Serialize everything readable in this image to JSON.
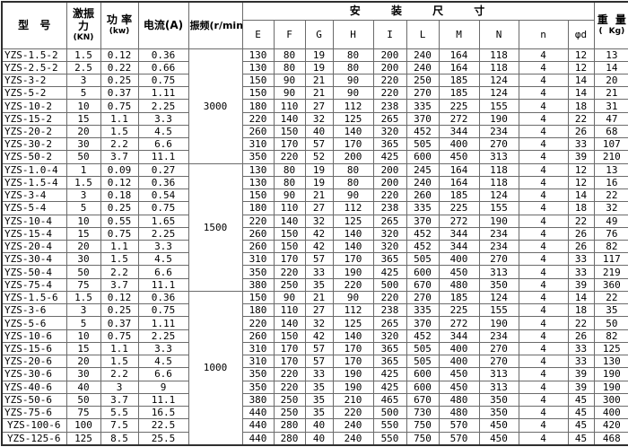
{
  "chart_data": {
    "type": "table",
    "headers": {
      "model": "型 号",
      "exciting_force_lines": [
        "激振",
        "力"
      ],
      "exciting_force_unit": "(KN)",
      "power": "功 率",
      "power_unit": "(kw)",
      "current": "电流(A)",
      "frequency": "振频(r/min)",
      "mounting_dimensions": "安 装 尺 寸",
      "dimension_columns": [
        "E",
        "F",
        "G",
        "H",
        "I",
        "L",
        "M",
        "N",
        "n",
        "φd"
      ],
      "weight": "重 量",
      "weight_unit": "( Kg)"
    },
    "groups": [
      {
        "frequency": "3000",
        "rows": [
          {
            "model": "YZS-1.5-2",
            "force": "1.5",
            "power": "0.12",
            "current": "0.36",
            "dims": [
              "130",
              "80",
              "19",
              "80",
              "200",
              "240",
              "164",
              "118",
              "4",
              "12"
            ],
            "weight": "13"
          },
          {
            "model": "YZS-2.5-2",
            "force": "2.5",
            "power": "0.22",
            "current": "0.66",
            "dims": [
              "130",
              "80",
              "19",
              "80",
              "200",
              "240",
              "164",
              "118",
              "4",
              "12"
            ],
            "weight": "14"
          },
          {
            "model": "YZS-3-2",
            "force": "3",
            "power": "0.25",
            "current": "0.75",
            "dims": [
              "150",
              "90",
              "21",
              "90",
              "220",
              "250",
              "185",
              "124",
              "4",
              "14"
            ],
            "weight": "20"
          },
          {
            "model": "YZS-5-2",
            "force": "5",
            "power": "0.37",
            "current": "1.11",
            "dims": [
              "150",
              "90",
              "21",
              "90",
              "220",
              "270",
              "185",
              "124",
              "4",
              "14"
            ],
            "weight": "21"
          },
          {
            "model": "YZS-10-2",
            "force": "10",
            "power": "0.75",
            "current": "2.25",
            "dims": [
              "180",
              "110",
              "27",
              "112",
              "238",
              "335",
              "225",
              "155",
              "4",
              "18"
            ],
            "weight": "31"
          },
          {
            "model": "YZS-15-2",
            "force": "15",
            "power": "1.1",
            "current": "3.3",
            "dims": [
              "220",
              "140",
              "32",
              "125",
              "265",
              "370",
              "272",
              "190",
              "4",
              "22"
            ],
            "weight": "47"
          },
          {
            "model": "YZS-20-2",
            "force": "20",
            "power": "1.5",
            "current": "4.5",
            "dims": [
              "260",
              "150",
              "40",
              "140",
              "320",
              "452",
              "344",
              "234",
              "4",
              "26"
            ],
            "weight": "68"
          },
          {
            "model": "YZS-30-2",
            "force": "30",
            "power": "2.2",
            "current": "6.6",
            "dims": [
              "310",
              "170",
              "57",
              "170",
              "365",
              "505",
              "400",
              "270",
              "4",
              "33"
            ],
            "weight": "107"
          },
          {
            "model": "YZS-50-2",
            "force": "50",
            "power": "3.7",
            "current": "11.1",
            "dims": [
              "350",
              "220",
              "52",
              "200",
              "425",
              "600",
              "450",
              "313",
              "4",
              "39"
            ],
            "weight": "210"
          }
        ]
      },
      {
        "frequency": "1500",
        "rows": [
          {
            "model": "YZS-1.0-4",
            "force": "1",
            "power": "0.09",
            "current": "0.27",
            "dims": [
              "130",
              "80",
              "19",
              "80",
              "200",
              "245",
              "164",
              "118",
              "4",
              "12"
            ],
            "weight": "13"
          },
          {
            "model": "YZS-1.5-4",
            "force": "1.5",
            "power": "0.12",
            "current": "0.36",
            "dims": [
              "130",
              "80",
              "19",
              "80",
              "200",
              "240",
              "164",
              "118",
              "4",
              "12"
            ],
            "weight": "16"
          },
          {
            "model": "YZS-3-4",
            "force": "3",
            "power": "0.18",
            "current": "0.54",
            "dims": [
              "150",
              "90",
              "21",
              "90",
              "220",
              "260",
              "185",
              "124",
              "4",
              "14"
            ],
            "weight": "22"
          },
          {
            "model": "YZS-5-4",
            "force": "5",
            "power": "0.25",
            "current": "0.75",
            "dims": [
              "180",
              "110",
              "27",
              "112",
              "238",
              "335",
              "225",
              "155",
              "4",
              "18"
            ],
            "weight": "32"
          },
          {
            "model": "YZS-10-4",
            "force": "10",
            "power": "0.55",
            "current": "1.65",
            "dims": [
              "220",
              "140",
              "32",
              "125",
              "265",
              "370",
              "272",
              "190",
              "4",
              "22"
            ],
            "weight": "49"
          },
          {
            "model": "YZS-15-4",
            "force": "15",
            "power": "0.75",
            "current": "2.25",
            "dims": [
              "260",
              "150",
              "42",
              "140",
              "320",
              "452",
              "344",
              "234",
              "4",
              "26"
            ],
            "weight": "76"
          },
          {
            "model": "YZS-20-4",
            "force": "20",
            "power": "1.1",
            "current": "3.3",
            "dims": [
              "260",
              "150",
              "42",
              "140",
              "320",
              "452",
              "344",
              "234",
              "4",
              "26"
            ],
            "weight": "82"
          },
          {
            "model": "YZS-30-4",
            "force": "30",
            "power": "1.5",
            "current": "4.5",
            "dims": [
              "310",
              "170",
              "57",
              "170",
              "365",
              "505",
              "400",
              "270",
              "4",
              "33"
            ],
            "weight": "117"
          },
          {
            "model": "YZS-50-4",
            "force": "50",
            "power": "2.2",
            "current": "6.6",
            "dims": [
              "350",
              "220",
              "33",
              "190",
              "425",
              "600",
              "450",
              "313",
              "4",
              "33"
            ],
            "weight": "219"
          },
          {
            "model": "YZS-75-4",
            "force": "75",
            "power": "3.7",
            "current": "11.1",
            "dims": [
              "380",
              "250",
              "35",
              "220",
              "500",
              "670",
              "480",
              "350",
              "4",
              "39"
            ],
            "weight": "360"
          }
        ]
      },
      {
        "frequency": "1000",
        "rows": [
          {
            "model": "YZS-1.5-6",
            "force": "1.5",
            "power": "0.12",
            "current": "0.36",
            "dims": [
              "150",
              "90",
              "21",
              "90",
              "220",
              "270",
              "185",
              "124",
              "4",
              "14"
            ],
            "weight": "22"
          },
          {
            "model": "YZS-3-6",
            "force": "3",
            "power": "0.25",
            "current": "0.75",
            "dims": [
              "180",
              "110",
              "27",
              "112",
              "238",
              "335",
              "225",
              "155",
              "4",
              "18"
            ],
            "weight": "35"
          },
          {
            "model": "YZS-5-6",
            "force": "5",
            "power": "0.37",
            "current": "1.11",
            "dims": [
              "220",
              "140",
              "32",
              "125",
              "265",
              "370",
              "272",
              "190",
              "4",
              "22"
            ],
            "weight": "50"
          },
          {
            "model": "YZS-10-6",
            "force": "10",
            "power": "0.75",
            "current": "2.25",
            "dims": [
              "260",
              "150",
              "42",
              "140",
              "320",
              "452",
              "344",
              "234",
              "4",
              "26"
            ],
            "weight": "82"
          },
          {
            "model": "YZS-15-6",
            "force": "15",
            "power": "1.1",
            "current": "3.3",
            "dims": [
              "310",
              "170",
              "57",
              "170",
              "365",
              "505",
              "400",
              "270",
              "4",
              "33"
            ],
            "weight": "125"
          },
          {
            "model": "YZS-20-6",
            "force": "20",
            "power": "1.5",
            "current": "4.5",
            "dims": [
              "310",
              "170",
              "57",
              "170",
              "365",
              "505",
              "400",
              "270",
              "4",
              "33"
            ],
            "weight": "130"
          },
          {
            "model": "YZS-30-6",
            "force": "30",
            "power": "2.2",
            "current": "6.6",
            "dims": [
              "350",
              "220",
              "33",
              "190",
              "425",
              "600",
              "450",
              "313",
              "4",
              "39"
            ],
            "weight": "190"
          },
          {
            "model": "YZS-40-6",
            "force": "40",
            "power": "3",
            "current": "9",
            "dims": [
              "350",
              "220",
              "35",
              "190",
              "425",
              "600",
              "450",
              "313",
              "4",
              "39"
            ],
            "weight": "190"
          },
          {
            "model": "YZS-50-6",
            "force": "50",
            "power": "3.7",
            "current": "11.1",
            "dims": [
              "380",
              "250",
              "35",
              "210",
              "465",
              "670",
              "480",
              "350",
              "4",
              "45"
            ],
            "weight": "300"
          },
          {
            "model": "YZS-75-6",
            "force": "75",
            "power": "5.5",
            "current": "16.5",
            "dims": [
              "440",
              "250",
              "35",
              "220",
              "500",
              "730",
              "480",
              "350",
              "4",
              "45"
            ],
            "weight": "400"
          },
          {
            "model": "YZS-100-6",
            "force": "100",
            "power": "7.5",
            "current": "22.5",
            "dims": [
              "440",
              "280",
              "40",
              "240",
              "550",
              "750",
              "570",
              "450",
              "4",
              "45"
            ],
            "weight": "420"
          },
          {
            "model": "YZS-125-6",
            "force": "125",
            "power": "8.5",
            "current": "25.5",
            "dims": [
              "440",
              "280",
              "40",
              "240",
              "550",
              "750",
              "570",
              "450",
              "4",
              "45"
            ],
            "weight": "468"
          }
        ]
      }
    ]
  }
}
